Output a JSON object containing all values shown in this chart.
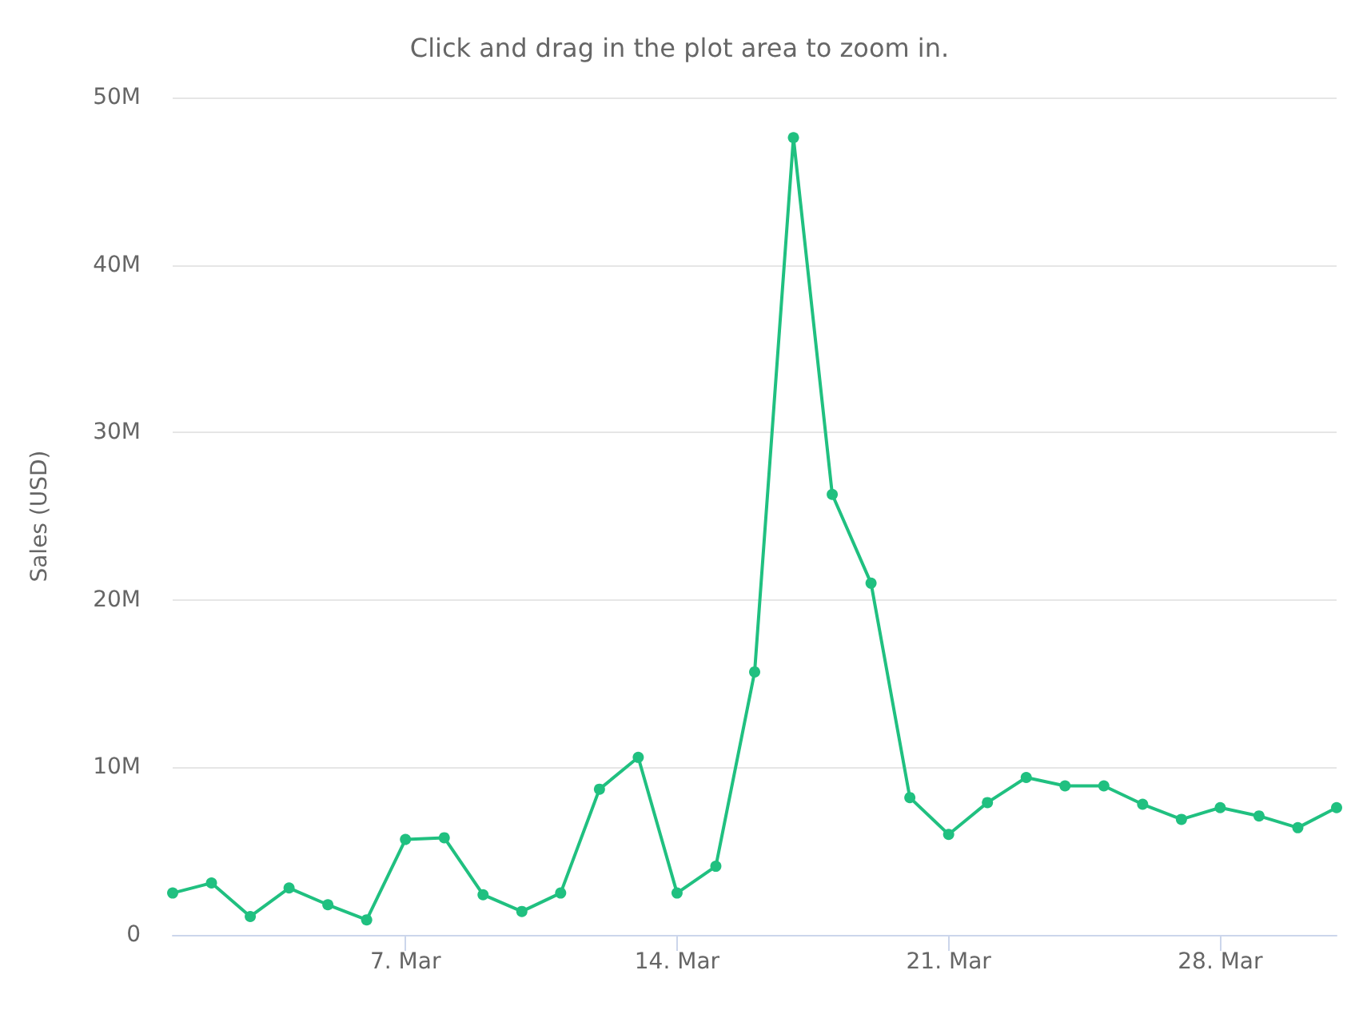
{
  "chart_data": {
    "type": "line",
    "subtitle": "Click and drag in the plot area to zoom in.",
    "ylabel": "Sales (USD)",
    "x": [
      "--03-01",
      "--03-02",
      "--03-03",
      "--03-04",
      "--03-05",
      "--03-06",
      "--03-07",
      "--03-08",
      "--03-09",
      "--03-10",
      "--03-11",
      "--03-12",
      "--03-13",
      "--03-14",
      "--03-15",
      "--03-16",
      "--03-17",
      "--03-18",
      "--03-19",
      "--03-20",
      "--03-21",
      "--03-22",
      "--03-23",
      "--03-24",
      "--03-25",
      "--03-26",
      "--03-27",
      "--03-28",
      "--03-29",
      "--03-30",
      "--03-31"
    ],
    "series": [
      {
        "color": "#20c080",
        "values": [
          2500000,
          3100000,
          1100000,
          2800000,
          1800000,
          900000,
          5700000,
          5800000,
          2400000,
          1400000,
          2500000,
          8700000,
          10600000,
          2500000,
          4100000,
          15700000,
          47600000,
          26300000,
          21000000,
          8200000,
          6000000,
          7900000,
          9400000,
          8900000,
          8900000,
          7800000,
          6900000,
          7600000,
          7100000,
          6400000,
          7600000
        ]
      }
    ],
    "xlim": [
      "--03-01",
      "--03-31"
    ],
    "xticks": [
      {
        "value": "--03-07",
        "label": "7. Mar"
      },
      {
        "value": "--03-14",
        "label": "14. Mar"
      },
      {
        "value": "--03-21",
        "label": "21. Mar"
      },
      {
        "value": "--03-28",
        "label": "28. Mar"
      }
    ],
    "ylim": [
      0,
      50000000
    ],
    "yticks": [
      {
        "value": 0,
        "label": "0"
      },
      {
        "value": 10000000,
        "label": "10M"
      },
      {
        "value": 20000000,
        "label": "20M"
      },
      {
        "value": 30000000,
        "label": "30M"
      },
      {
        "value": 40000000,
        "label": "40M"
      },
      {
        "value": 50000000,
        "label": "50M"
      }
    ],
    "grid": "y",
    "marker": "circle",
    "line_style": "solid"
  }
}
